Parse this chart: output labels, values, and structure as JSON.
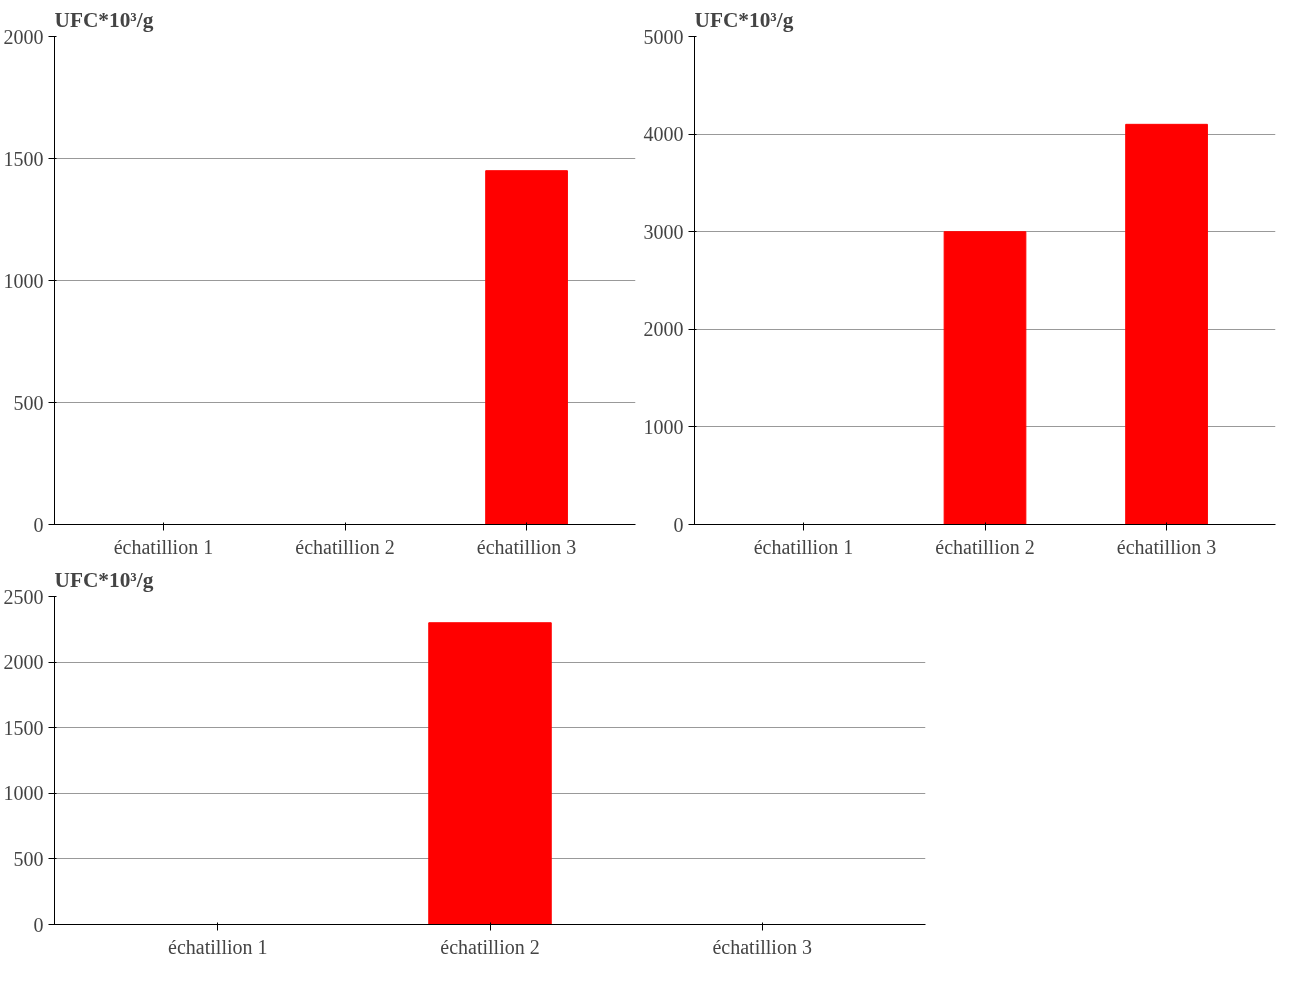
{
  "chart_data": [
    {
      "type": "bar",
      "ylabel": "UFC*10³/g",
      "categories": [
        "échatillion 1",
        "échatillion 2",
        "échatillion 3"
      ],
      "series": [
        {
          "color": "#ff0000",
          "values": [
            0,
            0,
            1450
          ]
        }
      ],
      "ylim": [
        0,
        2000
      ],
      "yticks": [
        0,
        500,
        1000,
        1500,
        2000
      ],
      "grid": "y"
    },
    {
      "type": "bar",
      "ylabel": "UFC*10³/g",
      "categories": [
        "échatillion 1",
        "échatillion 2",
        "échatillion 3"
      ],
      "series": [
        {
          "color": "#ff0000",
          "values": [
            0,
            3000,
            4100
          ]
        }
      ],
      "ylim": [
        0,
        5000
      ],
      "yticks": [
        0,
        1000,
        2000,
        3000,
        4000,
        5000
      ],
      "grid": "y"
    },
    {
      "type": "bar",
      "ylabel": "UFC*10³/g",
      "categories": [
        "échatillion 1",
        "échatillion 2",
        "échatillion 3"
      ],
      "series": [
        {
          "color": "#ff0000",
          "values": [
            0,
            2300,
            0
          ]
        }
      ],
      "ylim": [
        0,
        2500
      ],
      "yticks": [
        0,
        500,
        1000,
        1500,
        2000,
        2500
      ],
      "grid": "y"
    }
  ]
}
